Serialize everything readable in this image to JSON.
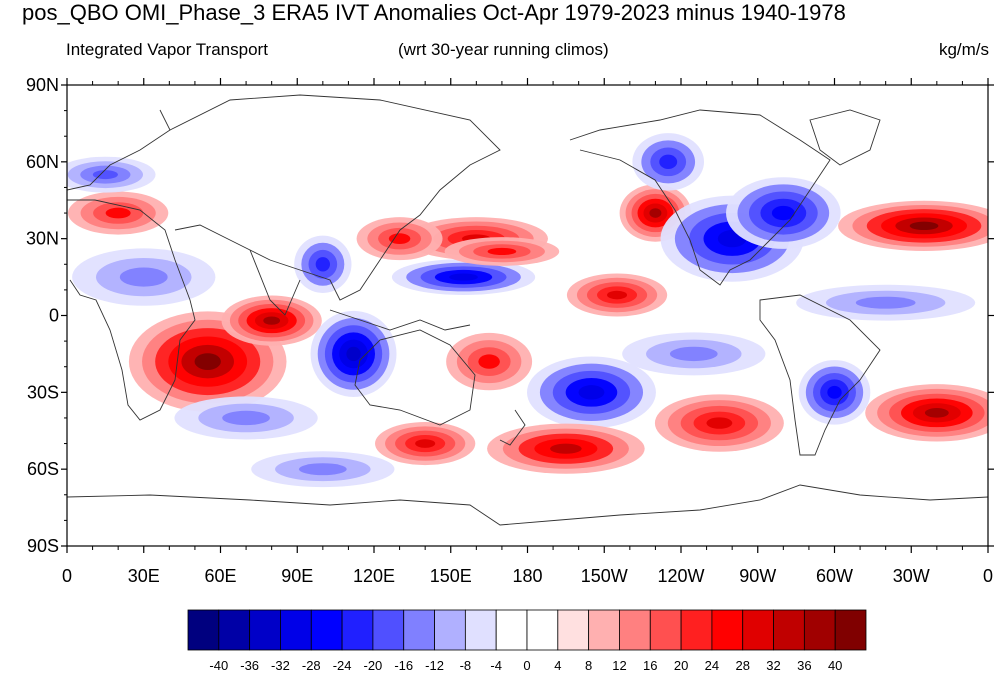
{
  "header": {
    "title": "pos_QBO OMI_Phase_3 ERA5 IVT Anomalies Oct-Apr 1979-2023 minus 1940-1978",
    "left_label": "Integrated Vapor Transport",
    "center_label": "(wrt 30-year running climos)",
    "right_label": "kg/m/s"
  },
  "axes": {
    "lat_labels": [
      "90N",
      "60N",
      "30N",
      "0",
      "30S",
      "60S",
      "90S"
    ],
    "lon_labels": [
      "0",
      "30E",
      "60E",
      "90E",
      "120E",
      "150E",
      "180",
      "150W",
      "120W",
      "90W",
      "60W",
      "30W",
      "0"
    ]
  },
  "colorbar": {
    "labels": [
      "-40",
      "-36",
      "-32",
      "-28",
      "-24",
      "-20",
      "-16",
      "-12",
      "-8",
      "-4",
      "0",
      "4",
      "8",
      "12",
      "16",
      "20",
      "24",
      "28",
      "32",
      "36",
      "40"
    ],
    "colors": [
      "#00007f",
      "#0000a6",
      "#0000c8",
      "#0000e8",
      "#0000ff",
      "#2020ff",
      "#5050ff",
      "#8080ff",
      "#b0b0ff",
      "#e0e0ff",
      "#ffffff",
      "#ffffff",
      "#ffe0e0",
      "#ffb0b0",
      "#ff8080",
      "#ff5050",
      "#ff2020",
      "#ff0000",
      "#e00000",
      "#c00000",
      "#a00000",
      "#800000"
    ]
  },
  "map": {
    "projection": "cylindrical-equidistant",
    "lon_range": [
      0,
      360
    ],
    "lat_range": [
      -90,
      90
    ],
    "anomaly_features": [
      {
        "lon": 55,
        "lat": -18,
        "value": 40,
        "rlon": 22,
        "rlat": 14
      },
      {
        "lon": 80,
        "lat": -2,
        "value": 36,
        "rlon": 14,
        "rlat": 7
      },
      {
        "lon": 112,
        "lat": -15,
        "value": -36,
        "rlon": 12,
        "rlat": 12
      },
      {
        "lon": 155,
        "lat": 15,
        "value": -32,
        "rlon": 20,
        "rlat": 5
      },
      {
        "lon": 160,
        "lat": 30,
        "value": 28,
        "rlon": 20,
        "rlat": 6
      },
      {
        "lon": 170,
        "lat": 25,
        "value": 24,
        "rlon": 16,
        "rlat": 4
      },
      {
        "lon": 165,
        "lat": -18,
        "value": 24,
        "rlon": 12,
        "rlat": 8
      },
      {
        "lon": 205,
        "lat": -30,
        "value": -32,
        "rlon": 18,
        "rlat": 10
      },
      {
        "lon": 195,
        "lat": -52,
        "value": 32,
        "rlon": 22,
        "rlat": 7
      },
      {
        "lon": 230,
        "lat": 40,
        "value": 36,
        "rlon": 10,
        "rlat": 8
      },
      {
        "lon": 215,
        "lat": 8,
        "value": 28,
        "rlon": 14,
        "rlat": 6
      },
      {
        "lon": 260,
        "lat": 30,
        "value": -32,
        "rlon": 20,
        "rlat": 12
      },
      {
        "lon": 280,
        "lat": 40,
        "value": -28,
        "rlon": 16,
        "rlat": 10
      },
      {
        "lon": 335,
        "lat": 35,
        "value": 40,
        "rlon": 24,
        "rlat": 7
      },
      {
        "lon": 340,
        "lat": -38,
        "value": 36,
        "rlon": 20,
        "rlat": 8
      },
      {
        "lon": 255,
        "lat": -42,
        "value": 28,
        "rlon": 18,
        "rlat": 8
      },
      {
        "lon": 300,
        "lat": -30,
        "value": -28,
        "rlon": 10,
        "rlat": 9
      },
      {
        "lon": 140,
        "lat": -50,
        "value": 28,
        "rlon": 14,
        "rlat": 6
      },
      {
        "lon": 235,
        "lat": 60,
        "value": -24,
        "rlon": 10,
        "rlat": 8
      },
      {
        "lon": 20,
        "lat": 40,
        "value": 24,
        "rlon": 14,
        "rlat": 6
      },
      {
        "lon": 15,
        "lat": 55,
        "value": -20,
        "rlon": 14,
        "rlat": 5
      },
      {
        "lon": 30,
        "lat": 15,
        "value": -16,
        "rlon": 20,
        "rlat": 8
      },
      {
        "lon": 100,
        "lat": 20,
        "value": -24,
        "rlon": 8,
        "rlat": 8
      },
      {
        "lon": 130,
        "lat": 30,
        "value": 24,
        "rlon": 12,
        "rlat": 6
      },
      {
        "lon": 70,
        "lat": -40,
        "value": -16,
        "rlon": 20,
        "rlat": 6
      },
      {
        "lon": 100,
        "lat": -60,
        "value": -16,
        "rlon": 20,
        "rlat": 5
      },
      {
        "lon": 320,
        "lat": 5,
        "value": -16,
        "rlon": 25,
        "rlat": 5
      },
      {
        "lon": 245,
        "lat": -15,
        "value": -16,
        "rlon": 20,
        "rlat": 6
      }
    ]
  }
}
